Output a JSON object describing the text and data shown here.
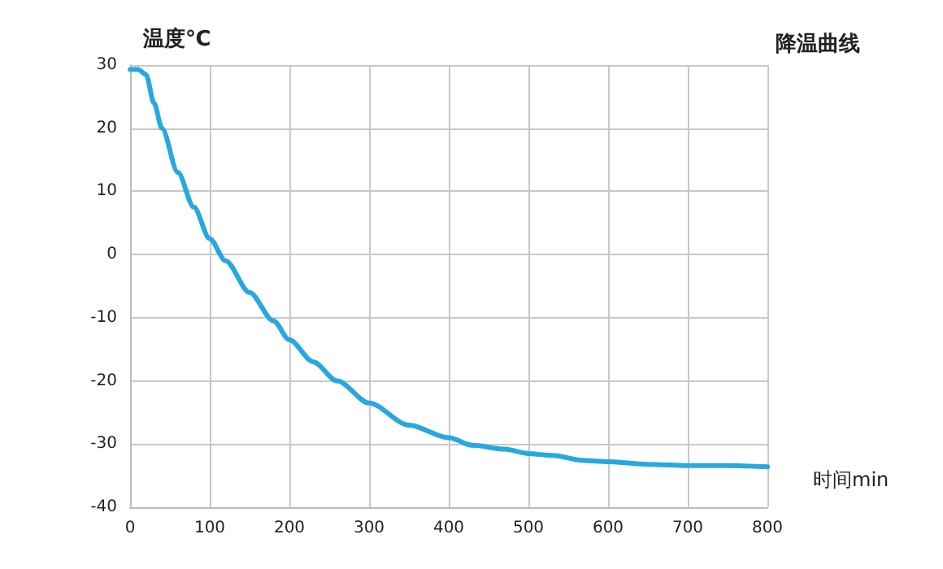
{
  "chart_data": {
    "type": "line",
    "title": "降温曲线",
    "xlabel": "时间min",
    "ylabel": "温度℃",
    "x": [
      0,
      10,
      20,
      30,
      40,
      60,
      80,
      100,
      120,
      150,
      180,
      200,
      230,
      260,
      300,
      350,
      400,
      430,
      470,
      500,
      530,
      570,
      600,
      650,
      700,
      750,
      800
    ],
    "series": [
      {
        "color": "#29a8e0",
        "values": [
          29.3,
          29.3,
          28.5,
          24,
          20,
          13,
          7.5,
          2.5,
          -1,
          -6,
          -10.5,
          -13.5,
          -17,
          -20,
          -23.5,
          -27,
          -29,
          -30.2,
          -30.8,
          -31.5,
          -31.8,
          -32.6,
          -32.8,
          -33.2,
          -33.4,
          -33.4,
          -33.6
        ]
      }
    ],
    "xlim": [
      0,
      800
    ],
    "xticks": [
      0,
      100,
      200,
      300,
      400,
      500,
      600,
      700,
      800
    ],
    "ylim": [
      -40,
      30
    ],
    "yticks": [
      -40,
      -30,
      -20,
      -10,
      0,
      10,
      20,
      30
    ],
    "grid": true,
    "marker": "none",
    "line_style": "solid"
  }
}
